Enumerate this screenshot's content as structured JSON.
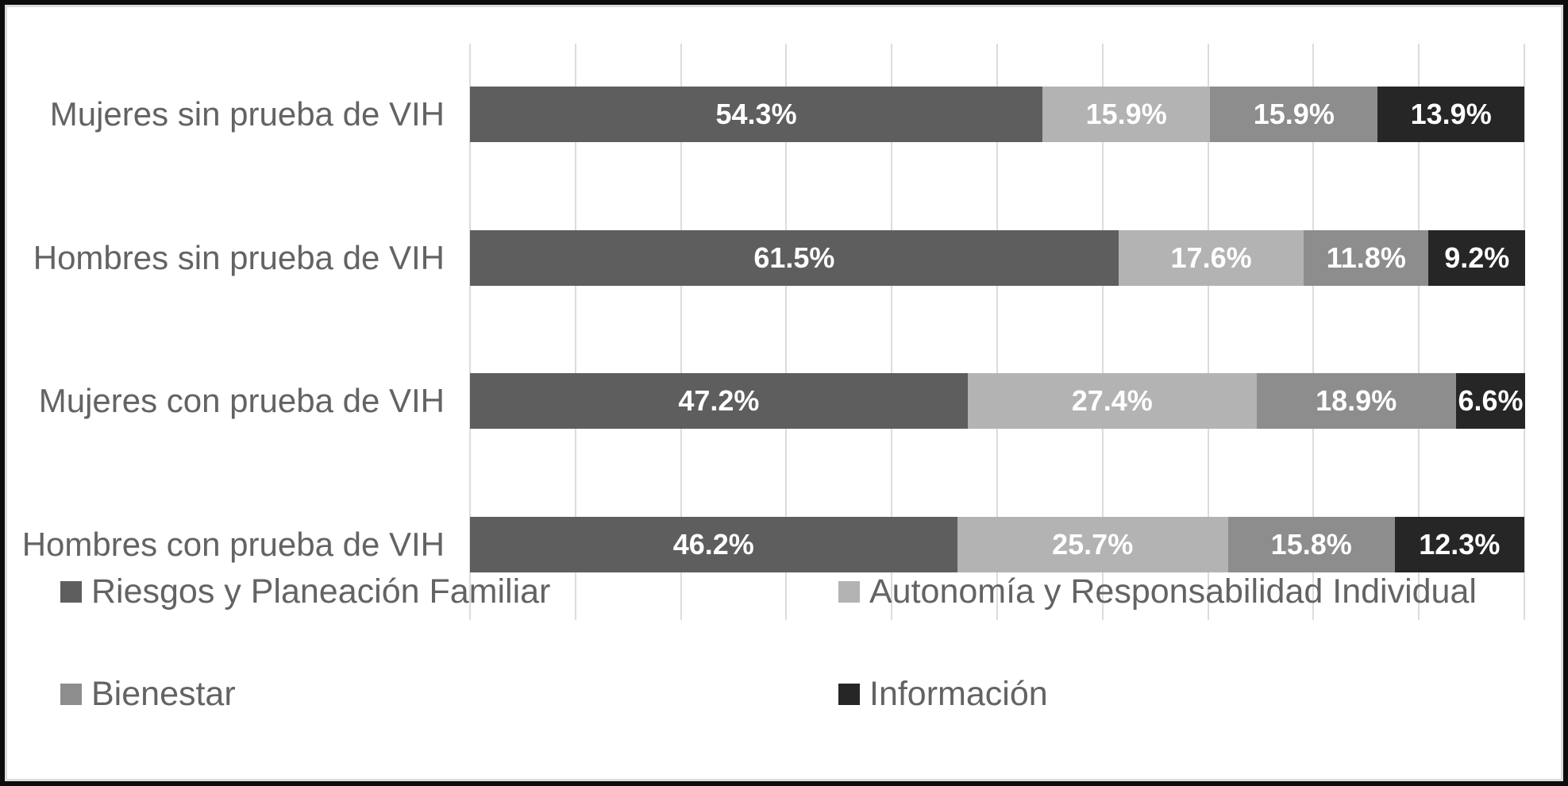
{
  "chart_data": {
    "type": "bar",
    "variant": "horizontal-stacked",
    "title": "",
    "xlabel": "",
    "ylabel": "",
    "xlim": [
      0,
      100
    ],
    "gridline_step_percent": 10,
    "grid": "vertical-lines-on",
    "legend_position": "bottom-two-columns",
    "categories": [
      "Mujeres sin prueba de VIH",
      "Hombres sin prueba de VIH",
      "Mujeres con prueba de VIH",
      "Hombres con prueba de VIH"
    ],
    "series": [
      {
        "name": "Riesgos y Planeación Familiar",
        "color": "#5E5E5E",
        "values": [
          54.3,
          61.5,
          47.2,
          46.2
        ]
      },
      {
        "name": "Autonomía y Responsabilidad Individual",
        "color": "#B3B3B3",
        "values": [
          15.9,
          17.6,
          27.4,
          25.7
        ]
      },
      {
        "name": "Bienestar",
        "color": "#8D8D8D",
        "values": [
          15.9,
          11.8,
          18.9,
          15.8
        ]
      },
      {
        "name": "Información",
        "color": "#262626",
        "values": [
          13.9,
          9.2,
          6.6,
          12.3
        ]
      }
    ],
    "value_labels": [
      [
        "54.3%",
        "61.5%",
        "47.2%",
        "46.2%"
      ],
      [
        "15.9%",
        "17.6%",
        "27.4%",
        "25.7%"
      ],
      [
        "15.9%",
        "11.8%",
        "18.9%",
        "15.8%"
      ],
      [
        "13.9%",
        "9.2%",
        "6.6%",
        "12.3%"
      ]
    ]
  },
  "colors": {
    "gridline": "#DCDCDC",
    "axis_text": "#636363",
    "bar_value_text": "#FFFFFF",
    "outer_border": "#0D0D0D",
    "inner_border": "#DCDCDC",
    "background": "#FFFFFF"
  }
}
